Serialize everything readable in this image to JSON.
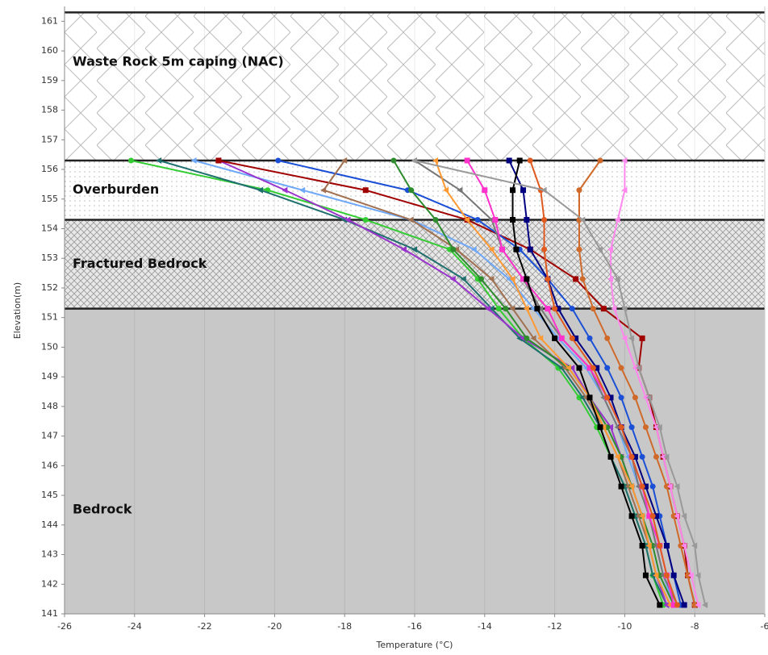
{
  "chart_data": {
    "type": "line",
    "x_label": "Temperature (°C)",
    "y_label": "Elevation(m)",
    "xlim": [
      -26,
      -6
    ],
    "ylim": [
      141,
      161.5
    ],
    "xticks": [
      -26,
      -24,
      -22,
      -20,
      -18,
      -16,
      -14,
      -12,
      -10,
      -8,
      -6
    ],
    "yticks": [
      141,
      142,
      143,
      144,
      145,
      146,
      147,
      148,
      149,
      150,
      151,
      152,
      153,
      154,
      155,
      156,
      157,
      158,
      159,
      160,
      161
    ],
    "grid": true,
    "zones": [
      {
        "label": "Waste Rock 5m caping (NAC)",
        "bottom": 156.3,
        "top": 161.3,
        "pattern": "waste"
      },
      {
        "label": "Overburden",
        "bottom": 154.3,
        "top": 156.3,
        "pattern": "dots"
      },
      {
        "label": "Fractured Bedrock",
        "bottom": 151.3,
        "top": 154.3,
        "pattern": "hatch"
      },
      {
        "label": "Bedrock",
        "bottom": 141,
        "top": 151.3,
        "pattern": "solid"
      }
    ],
    "y": [
      156.3,
      155.3,
      154.3,
      153.3,
      152.3,
      151.3,
      150.3,
      149.3,
      148.3,
      147.3,
      146.3,
      145.3,
      144.3,
      143.3,
      142.3,
      141.3
    ],
    "series": [
      {
        "color": "#33cc33",
        "marker": "circle",
        "values": [
          -24.1,
          -20.2,
          -17.4,
          -15.0,
          -14.2,
          -13.6,
          -12.9,
          -11.9,
          -11.3,
          -10.8,
          -10.4,
          -10.0,
          -9.7,
          -9.4,
          -9.2,
          -8.9
        ]
      },
      {
        "color": "#1f6f6f",
        "marker": "triangle",
        "values": [
          -23.3,
          -20.4,
          -18.0,
          -16.0,
          -14.6,
          -13.8,
          -13.0,
          -11.8,
          -11.2,
          -10.7,
          -10.4,
          -10.0,
          -9.7,
          -9.4,
          -9.2,
          -8.8
        ]
      },
      {
        "color": "#70a8f8",
        "marker": "triangle",
        "values": [
          -22.3,
          -19.2,
          -16.1,
          -14.3,
          -13.3,
          -12.6,
          -11.9,
          -11.1,
          -10.6,
          -10.2,
          -9.9,
          -9.6,
          -9.3,
          -9.1,
          -8.9,
          -8.6
        ]
      },
      {
        "color": "#9933cc",
        "marker": "triangle",
        "values": [
          -21.6,
          -19.7,
          -17.9,
          -16.3,
          -14.9,
          -13.9,
          -12.9,
          -11.5,
          -11.0,
          -10.4,
          -10.1,
          -9.8,
          -9.5,
          -9.3,
          -9.1,
          -8.8
        ]
      },
      {
        "color": "#a00000",
        "marker": "square",
        "values": [
          -21.6,
          -17.4,
          -14.5,
          -12.7,
          -11.4,
          -10.6,
          -9.5,
          -9.6,
          -9.3,
          -9.1,
          -8.9,
          -8.7,
          -8.5,
          -8.3,
          -8.2,
          -8.0
        ]
      },
      {
        "color": "#1a4fd6",
        "marker": "circle",
        "values": [
          -19.9,
          -16.2,
          -14.2,
          -13.0,
          -12.2,
          -11.5,
          -11.0,
          -10.5,
          -10.1,
          -9.8,
          -9.5,
          -9.2,
          -9.0,
          -8.8,
          -8.6,
          -8.4
        ]
      },
      {
        "color": "#a07050",
        "marker": "triangle",
        "values": [
          -18.0,
          -18.6,
          -16.1,
          -14.8,
          -13.8,
          -13.2,
          -12.6,
          -11.7,
          -11.1,
          -10.6,
          -10.2,
          -9.9,
          -9.6,
          -9.3,
          -9.1,
          -8.7
        ]
      },
      {
        "color": "#2e8b2e",
        "marker": "circle",
        "values": [
          -16.6,
          -16.1,
          -15.4,
          -14.9,
          -14.1,
          -13.4,
          -12.8,
          -11.6,
          -11.0,
          -10.5,
          -10.1,
          -9.8,
          -9.5,
          -9.2,
          -9.0,
          -8.6
        ]
      },
      {
        "color": "#777777",
        "marker": "triangle",
        "values": [
          -16.0,
          -14.7,
          -13.8,
          -13.5,
          -12.9,
          -12.4,
          -11.8,
          -11.0,
          -10.6,
          -10.2,
          -9.8,
          -9.6,
          -9.3,
          -9.1,
          -8.9,
          -8.5
        ]
      },
      {
        "color": "#ff9933",
        "marker": "triangle",
        "values": [
          -15.4,
          -15.1,
          -14.5,
          -13.8,
          -13.2,
          -12.8,
          -12.4,
          -11.6,
          -11.0,
          -10.6,
          -10.2,
          -9.8,
          -9.5,
          -9.3,
          -9.1,
          -8.7
        ]
      },
      {
        "color": "#ff33cc",
        "marker": "square",
        "values": [
          -14.5,
          -14.0,
          -13.7,
          -13.5,
          -12.9,
          -12.2,
          -11.8,
          -11.0,
          -10.5,
          -10.1,
          -9.8,
          -9.5,
          -9.3,
          -9.0,
          -8.8,
          -8.6
        ]
      },
      {
        "color": "#000080",
        "marker": "square",
        "values": [
          -13.3,
          -12.9,
          -12.8,
          -12.7,
          -12.2,
          -11.9,
          -11.4,
          -10.8,
          -10.4,
          -10.1,
          -9.7,
          -9.4,
          -9.1,
          -8.8,
          -8.6,
          -8.3
        ]
      },
      {
        "color": "#000000",
        "marker": "square",
        "values": [
          -13.0,
          -13.2,
          -13.2,
          -13.1,
          -12.8,
          -12.5,
          -12.0,
          -11.3,
          -11.0,
          -10.7,
          -10.4,
          -10.1,
          -9.8,
          -9.5,
          -9.4,
          -9.0
        ]
      },
      {
        "color": "#e05a20",
        "marker": "circle",
        "values": [
          -12.7,
          -12.4,
          -12.3,
          -12.3,
          -12.2,
          -12.0,
          -11.5,
          -10.9,
          -10.5,
          -10.1,
          -9.8,
          -9.5,
          -9.2,
          -9.0,
          -8.8,
          -8.5
        ]
      },
      {
        "color": "#d06a2a",
        "marker": "circle",
        "values": [
          -10.7,
          -11.3,
          -11.3,
          -11.3,
          -11.2,
          -10.9,
          -10.5,
          -10.1,
          -9.7,
          -9.4,
          -9.1,
          -8.8,
          -8.6,
          -8.4,
          -8.2,
          -8.0
        ]
      },
      {
        "color": "#ff88ee",
        "marker": "triangle",
        "values": [
          -10.0,
          -10.0,
          -10.2,
          -10.4,
          -10.4,
          -10.3,
          -10.0,
          -9.7,
          -9.4,
          -9.1,
          -8.9,
          -8.7,
          -8.5,
          -8.3,
          -8.1,
          -7.9
        ]
      },
      {
        "color": "#999999",
        "marker": "triangle",
        "values": [
          -16.0,
          -12.3,
          -11.2,
          -10.7,
          -10.2,
          -10.0,
          -9.8,
          -9.6,
          -9.3,
          -9.0,
          -8.8,
          -8.5,
          -8.3,
          -8.0,
          -7.9,
          -7.7
        ]
      }
    ]
  }
}
